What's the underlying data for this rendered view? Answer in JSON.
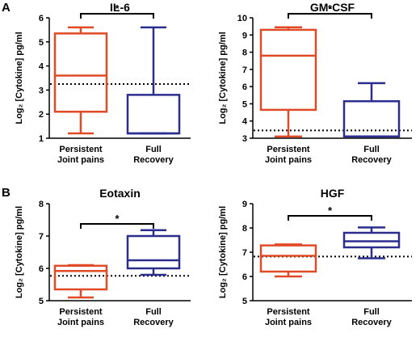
{
  "colors": {
    "persistent": "#e04a27",
    "recovery": "#2b2e8f",
    "axis": "#000000"
  },
  "panel_labels": [
    "A",
    "B"
  ],
  "chart_data": [
    {
      "type": "box",
      "title": "IL-6",
      "ylabel": "Log₂ [Cytokine] pg/ml",
      "ylim": [
        1,
        6
      ],
      "yticks": [
        1,
        2,
        3,
        4,
        5,
        6
      ],
      "categories": [
        "Persistent Joint pains",
        "Full Recovery"
      ],
      "category_lines": [
        [
          "Persistent",
          "Joint pains"
        ],
        [
          "Full",
          "Recovery"
        ]
      ],
      "boxes": [
        {
          "min": 1.2,
          "q1": 2.1,
          "median": 3.6,
          "q3": 5.35,
          "max": 5.6
        },
        {
          "min": 1.2,
          "q1": 1.2,
          "median": 1.2,
          "q3": 2.8,
          "max": 5.6
        }
      ],
      "reference_line": 3.25,
      "significance": "*"
    },
    {
      "type": "box",
      "title": "GM-CSF",
      "ylabel": "Log₂ [Cytokine] pg/ml",
      "ylim": [
        3,
        10
      ],
      "yticks": [
        3,
        4,
        5,
        6,
        7,
        8,
        9,
        10
      ],
      "categories": [
        "Persistent Joint pains",
        "Full Recovery"
      ],
      "category_lines": [
        [
          "Persistent",
          "Joint pains"
        ],
        [
          "Full",
          "Recovery"
        ]
      ],
      "boxes": [
        {
          "min": 3.1,
          "q1": 4.65,
          "median": 7.8,
          "q3": 9.3,
          "max": 9.45
        },
        {
          "min": 3.1,
          "q1": 3.1,
          "median": 3.1,
          "q3": 5.15,
          "max": 6.2
        }
      ],
      "reference_line": 3.45,
      "significance": "*"
    },
    {
      "type": "box",
      "title": "Eotaxin",
      "ylabel": "Log₂ [Cytokine] pg/ml",
      "ylim": [
        5,
        8
      ],
      "yticks": [
        5,
        6,
        7,
        8
      ],
      "categories": [
        "Persistent Joint pains",
        "Full Recovery"
      ],
      "category_lines": [
        [
          "Persistent",
          "Joint pains"
        ],
        [
          "Full",
          "Recovery"
        ]
      ],
      "boxes": [
        {
          "min": 5.1,
          "q1": 5.35,
          "median": 5.92,
          "q3": 6.08,
          "max": 6.1
        },
        {
          "min": 5.8,
          "q1": 6.0,
          "median": 6.25,
          "q3": 7.0,
          "max": 7.18
        }
      ],
      "reference_line": 5.77,
      "significance": "*"
    },
    {
      "type": "box",
      "title": "HGF",
      "ylabel": "Log₂ [Cytokine] pg/ml",
      "ylim": [
        5,
        9
      ],
      "yticks": [
        5,
        6,
        7,
        8,
        9
      ],
      "categories": [
        "Persistent Joint pains",
        "Full Recovery"
      ],
      "category_lines": [
        [
          "Persistent",
          "Joint pains"
        ],
        [
          "Full",
          "Recovery"
        ]
      ],
      "boxes": [
        {
          "min": 6.0,
          "q1": 6.2,
          "median": 6.85,
          "q3": 7.28,
          "max": 7.32
        },
        {
          "min": 6.75,
          "q1": 7.2,
          "median": 7.45,
          "q3": 7.8,
          "max": 8.02
        }
      ],
      "reference_line": 6.82,
      "significance": "*"
    }
  ]
}
